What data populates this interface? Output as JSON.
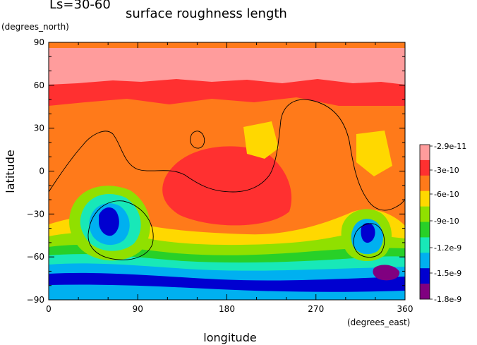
{
  "header": {
    "season": "Ls=30-60",
    "title": "surface roughness length"
  },
  "chart_data": {
    "type": "heatmap",
    "title": "surface roughness length",
    "season_label": "Ls=30-60",
    "xlabel": "longitude",
    "xunit": "(degrees_east)",
    "ylabel": "latitude",
    "yunit": "(degrees_north)",
    "xlim": [
      0,
      360
    ],
    "ylim": [
      -90,
      90
    ],
    "xticks": [
      "0",
      "90",
      "180",
      "270",
      "360"
    ],
    "xtick_values": [
      0,
      90,
      180,
      270,
      360
    ],
    "yticks": [
      "90",
      "60",
      "30",
      "0",
      "−30",
      "−60",
      "−90"
    ],
    "ytick_values": [
      90,
      60,
      30,
      0,
      -30,
      -60,
      -90
    ],
    "colorbar": {
      "labels": [
        "-2.9e-11",
        "-3e-10",
        "-6e-10",
        "-9e-10",
        "-1.2e-9",
        "-1.5e-9",
        "-1.8e-9"
      ],
      "colors": [
        "#ff9c9c",
        "#ff3030",
        "#ff7a1a",
        "#ffd800",
        "#90e000",
        "#28d028",
        "#18e8b8",
        "#00b0f0",
        "#0000d0",
        "#800080"
      ]
    },
    "colors": {
      "polar_north": "#ff9c9c",
      "north_band": "#ff3030",
      "mid": "#ff7a1a",
      "yellow": "#ffd800",
      "lime": "#90e000",
      "green": "#28d028",
      "cyan": "#18e8b8",
      "blue": "#00b0f0",
      "dark_blue": "#0000d0",
      "purple": "#800080"
    }
  }
}
